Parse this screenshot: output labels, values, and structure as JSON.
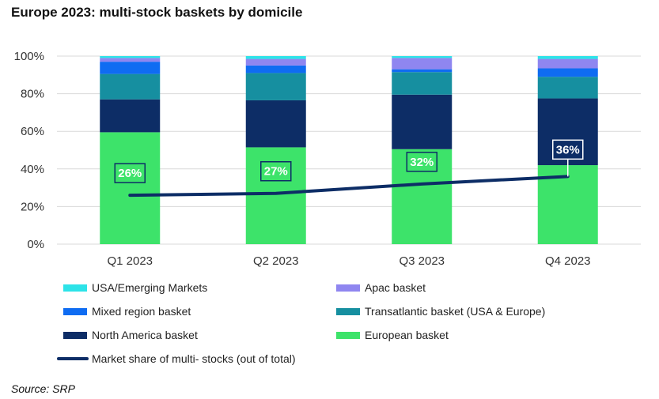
{
  "title": "Europe 2023: multi-stock baskets by domicile",
  "source": "Source: SRP",
  "chart_data": {
    "type": "bar",
    "stacked": true,
    "categories": [
      "Q1 2023",
      "Q2 2023",
      "Q3 2023",
      "Q4 2023"
    ],
    "y_ticks": [
      "0%",
      "20%",
      "40%",
      "60%",
      "80%",
      "100%"
    ],
    "ylim": [
      0,
      100
    ],
    "grid": true,
    "series": [
      {
        "name": "European basket",
        "color": "#3de36a",
        "values": [
          59.5,
          51.5,
          50.5,
          42
        ]
      },
      {
        "name": "North America basket",
        "color": "#0d2d66",
        "values": [
          17.5,
          25,
          29,
          35.5
        ]
      },
      {
        "name": "Transatlantic basket (USA & Europe)",
        "color": "#168fa0",
        "values": [
          13.5,
          14.5,
          12,
          11.5
        ]
      },
      {
        "name": "Mixed region basket",
        "color": "#0f6cf2",
        "values": [
          6.5,
          4,
          1.5,
          4.5
        ]
      },
      {
        "name": "Apac basket",
        "color": "#8f86f0",
        "values": [
          2,
          3.5,
          6,
          5
        ]
      },
      {
        "name": "USA/Emerging Markets",
        "color": "#2de3e8",
        "values": [
          1,
          1.5,
          1,
          1.5
        ]
      }
    ],
    "line": {
      "name": "Market share of multi- stocks (out of total)",
      "color": "#0d2d66",
      "values": [
        26,
        27,
        32,
        36
      ],
      "labels": [
        "26%",
        "27%",
        "32%",
        "36%"
      ]
    },
    "legend_order": [
      "USA/Emerging Markets",
      "Apac basket",
      "Mixed region basket",
      "Transatlantic basket (USA & Europe)",
      "North America basket",
      "European basket",
      "Market share of multi- stocks (out of total)"
    ]
  }
}
